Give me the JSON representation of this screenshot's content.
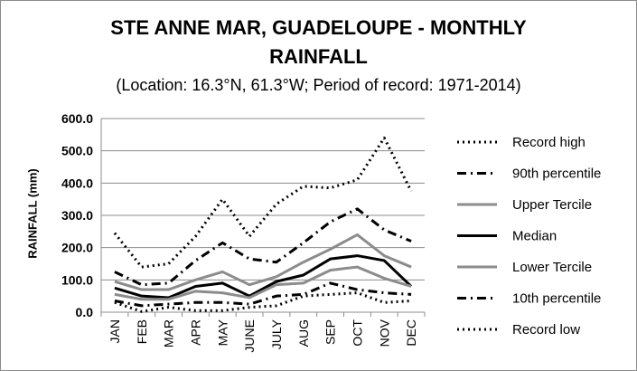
{
  "chart_data": {
    "type": "line",
    "title_line1": "STE ANNE MAR, GUADELOUPE - MONTHLY",
    "title_line2": "RAINFALL",
    "subtitle": "(Location: 16.3°N, 61.3°W; Period of record: 1971-2014)",
    "xlabel": "",
    "ylabel": "RAINFALL (mm)",
    "ylim": [
      0,
      600
    ],
    "yticks": [
      "0.0",
      "100.0",
      "200.0",
      "300.0",
      "400.0",
      "500.0",
      "600.0"
    ],
    "categories": [
      "JAN",
      "FEB",
      "MAR",
      "APR",
      "MAY",
      "JUNE",
      "JULY",
      "AUG",
      "SEP",
      "OCT",
      "NOV",
      "DEC"
    ],
    "grid": true,
    "legend_position": "right",
    "series": [
      {
        "name": "Record high",
        "color": "#000000",
        "dash": "dotted",
        "values": [
          245,
          140,
          150,
          235,
          350,
          235,
          335,
          390,
          385,
          410,
          540,
          375
        ]
      },
      {
        "name": "90th percentile",
        "color": "#000000",
        "dash": "dashdot",
        "values": [
          125,
          85,
          90,
          160,
          215,
          165,
          155,
          215,
          280,
          320,
          255,
          220
        ]
      },
      {
        "name": "Upper Tercile",
        "color": "#8c8c8c",
        "dash": "solid",
        "values": [
          95,
          70,
          70,
          100,
          125,
          85,
          110,
          155,
          195,
          240,
          175,
          140
        ]
      },
      {
        "name": "Median",
        "color": "#000000",
        "dash": "solid",
        "values": [
          75,
          50,
          45,
          80,
          90,
          50,
          95,
          115,
          165,
          175,
          160,
          80
        ]
      },
      {
        "name": "Lower Tercile",
        "color": "#8c8c8c",
        "dash": "solid",
        "values": [
          55,
          40,
          40,
          65,
          60,
          45,
          85,
          90,
          130,
          140,
          105,
          80
        ]
      },
      {
        "name": "10th percentile",
        "color": "#000000",
        "dash": "dashdot",
        "values": [
          35,
          20,
          25,
          30,
          30,
          25,
          50,
          55,
          90,
          70,
          60,
          55
        ]
      },
      {
        "name": "Record low",
        "color": "#000000",
        "dash": "dotted",
        "values": [
          30,
          2,
          15,
          5,
          5,
          15,
          20,
          50,
          55,
          60,
          30,
          35
        ]
      }
    ]
  }
}
